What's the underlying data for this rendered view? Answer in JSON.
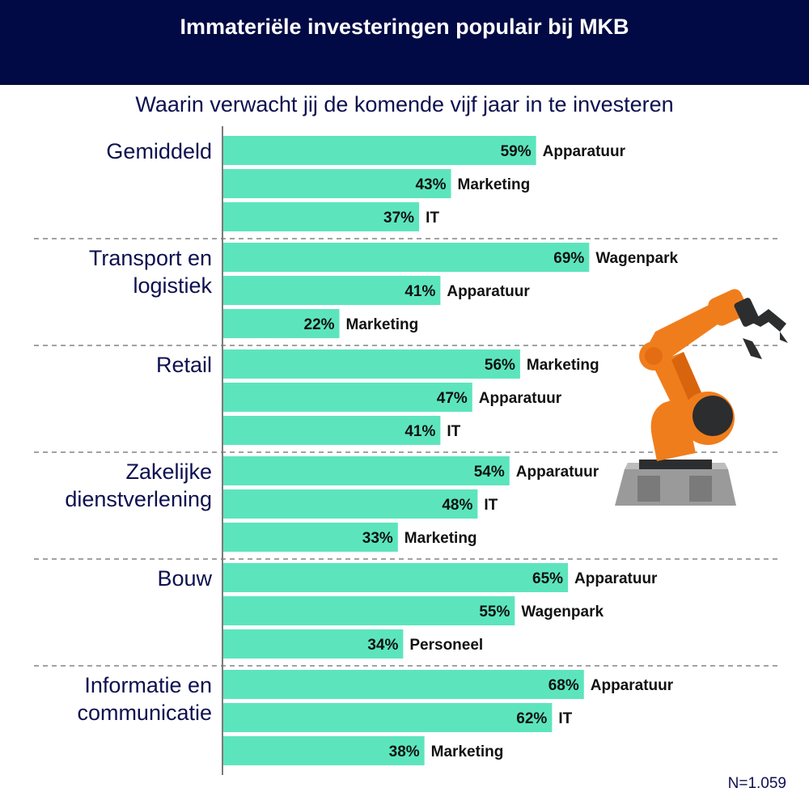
{
  "header": {
    "title": "Immateriële investeringen populair bij MKB",
    "subtitle": "Waarin verwacht jij de komende vijf jaar in te investeren"
  },
  "footnote": "N=1.059",
  "colors": {
    "header_bg": "#020a45",
    "bar": "#5ce5bd",
    "text_dark": "#0d1050",
    "robot_orange": "#f07d1c",
    "robot_dark": "#2c2d2e"
  },
  "illustration": {
    "icon": "industrial-robot-arm-icon"
  },
  "chart_data": {
    "type": "bar",
    "orientation": "horizontal",
    "unit": "%",
    "xlim": [
      0,
      100
    ],
    "groups": [
      {
        "name": "Gemiddeld",
        "name_lines": [
          "Gemiddeld"
        ],
        "bars": [
          {
            "category": "Apparatuur",
            "value": 59,
            "label": "59%"
          },
          {
            "category": "Marketing",
            "value": 43,
            "label": "43%"
          },
          {
            "category": "IT",
            "value": 37,
            "label": "37%"
          }
        ]
      },
      {
        "name": "Transport en logistiek",
        "name_lines": [
          "Transport en",
          "logistiek"
        ],
        "bars": [
          {
            "category": "Wagenpark",
            "value": 69,
            "label": "69%"
          },
          {
            "category": "Apparatuur",
            "value": 41,
            "label": "41%"
          },
          {
            "category": "Marketing",
            "value": 22,
            "label": "22%"
          }
        ]
      },
      {
        "name": "Retail",
        "name_lines": [
          "Retail"
        ],
        "bars": [
          {
            "category": "Marketing",
            "value": 56,
            "label": "56%"
          },
          {
            "category": "Apparatuur",
            "value": 47,
            "label": "47%"
          },
          {
            "category": "IT",
            "value": 41,
            "label": "41%"
          }
        ]
      },
      {
        "name": "Zakelijke dienstverlening",
        "name_lines": [
          "Zakelijke",
          "dienstverlening"
        ],
        "bars": [
          {
            "category": "Apparatuur",
            "value": 54,
            "label": "54%"
          },
          {
            "category": "IT",
            "value": 48,
            "label": "48%"
          },
          {
            "category": "Marketing",
            "value": 33,
            "label": "33%"
          }
        ]
      },
      {
        "name": "Bouw",
        "name_lines": [
          "Bouw"
        ],
        "bars": [
          {
            "category": "Apparatuur",
            "value": 65,
            "label": "65%"
          },
          {
            "category": "Wagenpark",
            "value": 55,
            "label": "55%"
          },
          {
            "category": "Personeel",
            "value": 34,
            "label": "34%"
          }
        ]
      },
      {
        "name": "Informatie en communicatie",
        "name_lines": [
          "Informatie en",
          "communicatie"
        ],
        "bars": [
          {
            "category": "Apparatuur",
            "value": 68,
            "label": "68%"
          },
          {
            "category": "IT",
            "value": 62,
            "label": "62%"
          },
          {
            "category": "Marketing",
            "value": 38,
            "label": "38%"
          }
        ]
      }
    ]
  }
}
